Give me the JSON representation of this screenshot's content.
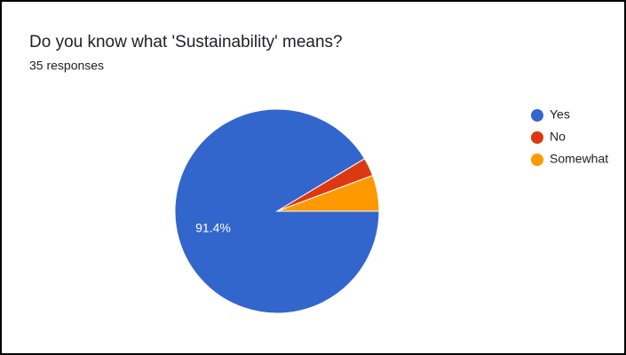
{
  "chart_data": {
    "type": "pie",
    "title": "Do you know what 'Sustainability' means?",
    "subtitle": "35 responses",
    "categories": [
      "Yes",
      "No",
      "Somewhat"
    ],
    "values": [
      91.4,
      2.9,
      5.7
    ],
    "value_labels": [
      "91.4%",
      null,
      null
    ],
    "colors": [
      "#3366cc",
      "#dc3912",
      "#ff9900"
    ],
    "legend": "right"
  }
}
